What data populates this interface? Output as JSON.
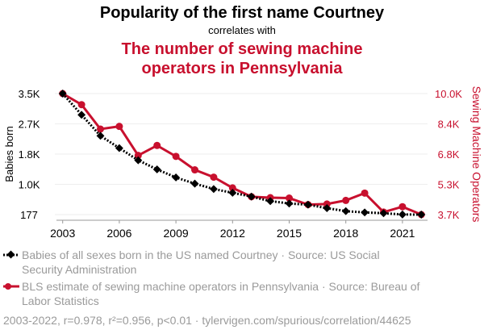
{
  "chart_data": {
    "type": "line",
    "title": "Popularity of the first name Courtney",
    "subtitle": "correlates with",
    "title2_lines": [
      "The number of sewing machine",
      "operators in Pennsylvania"
    ],
    "x": [
      2003,
      2004,
      2005,
      2006,
      2007,
      2008,
      2009,
      2010,
      2011,
      2012,
      2013,
      2014,
      2015,
      2016,
      2017,
      2018,
      2019,
      2020,
      2021,
      2022
    ],
    "xticks": [
      "2003",
      "2006",
      "2009",
      "2012",
      "2015",
      "2018",
      "2021"
    ],
    "ylabel_left": "Babies born",
    "ylabel_right": "Sewing Machine Operators",
    "ylim_left": [
      177,
      3500
    ],
    "ylim_right": [
      3700,
      10000
    ],
    "yticks_left": [
      {
        "v": 3500,
        "label": "3.5K"
      },
      {
        "v": 2669,
        "label": "2.7K"
      },
      {
        "v": 1838,
        "label": "1.8K"
      },
      {
        "v": 1008,
        "label": "1.0K"
      },
      {
        "v": 177,
        "label": "177"
      }
    ],
    "yticks_right": [
      {
        "v": 10000,
        "label": "10.0K"
      },
      {
        "v": 8425,
        "label": "8.4K"
      },
      {
        "v": 6850,
        "label": "6.8K"
      },
      {
        "v": 5275,
        "label": "5.3K"
      },
      {
        "v": 3700,
        "label": "3.7K"
      }
    ],
    "grid": true,
    "series": [
      {
        "name": "Babies of all sexes born in the US named Courtney",
        "axis": "left",
        "color": "#000000",
        "values": [
          3500,
          2917,
          2341,
          2003,
          1669,
          1418,
          1197,
          1027,
          880,
          776,
          672,
          547,
          481,
          450,
          354,
          272,
          237,
          215,
          180,
          177
        ]
      },
      {
        "name": "BLS estimate of sewing machine operators in Pennsylvania",
        "axis": "right",
        "color": "#c8102e",
        "values": [
          10000,
          9425,
          8152,
          8293,
          6780,
          7300,
          6730,
          6030,
          5650,
          5090,
          4630,
          4580,
          4560,
          4220,
          4250,
          4440,
          4820,
          3830,
          4110,
          3700
        ]
      }
    ],
    "legend": [
      [
        "Babies of all sexes born in the US named Courtney · Source: US Social",
        "Security Administration"
      ],
      [
        "BLS estimate of sewing machine operators in Pennsylvania · Source: Bureau of",
        "Labor Statistics"
      ]
    ],
    "footer": "2003-2022, r=0.978, r²=0.956, p<0.01 · tylervigen.com/spurious/correlation/44625"
  }
}
